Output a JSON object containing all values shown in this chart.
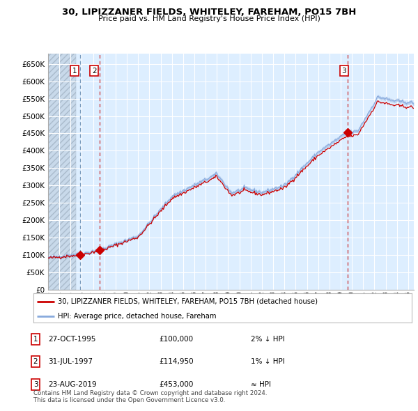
{
  "title1": "30, LIPIZZANER FIELDS, WHITELEY, FAREHAM, PO15 7BH",
  "title2": "Price paid vs. HM Land Registry's House Price Index (HPI)",
  "legend_line1": "30, LIPIZZANER FIELDS, WHITELEY, FAREHAM, PO15 7BH (detached house)",
  "legend_line2": "HPI: Average price, detached house, Fareham",
  "sales": [
    {
      "label": "1",
      "date_num": 1995.82,
      "price": 100000,
      "date_str": "27-OCT-1995",
      "rel": "2% ↓ HPI"
    },
    {
      "label": "2",
      "date_num": 1997.58,
      "price": 114950,
      "date_str": "31-JUL-1997",
      "rel": "1% ↓ HPI"
    },
    {
      "label": "3",
      "date_num": 2019.64,
      "price": 453000,
      "date_str": "23-AUG-2019",
      "rel": "≈ HPI"
    }
  ],
  "sale_marker_color": "#cc0000",
  "hpi_color": "#88aadd",
  "price_color": "#cc0000",
  "bg_color": "#ddeeff",
  "grid_color": "#ffffff",
  "ylim": [
    0,
    680000
  ],
  "yticks": [
    0,
    50000,
    100000,
    150000,
    200000,
    250000,
    300000,
    350000,
    400000,
    450000,
    500000,
    550000,
    600000,
    650000
  ],
  "xlim_start": 1993.0,
  "xlim_end": 2025.5,
  "xticks": [
    1993,
    1994,
    1995,
    1996,
    1997,
    1998,
    1999,
    2000,
    2001,
    2002,
    2003,
    2004,
    2005,
    2006,
    2007,
    2008,
    2009,
    2010,
    2011,
    2012,
    2013,
    2014,
    2015,
    2016,
    2017,
    2018,
    2019,
    2020,
    2021,
    2022,
    2023,
    2024,
    2025
  ],
  "footnote": "Contains HM Land Registry data © Crown copyright and database right 2024.\nThis data is licensed under the Open Government Licence v3.0."
}
